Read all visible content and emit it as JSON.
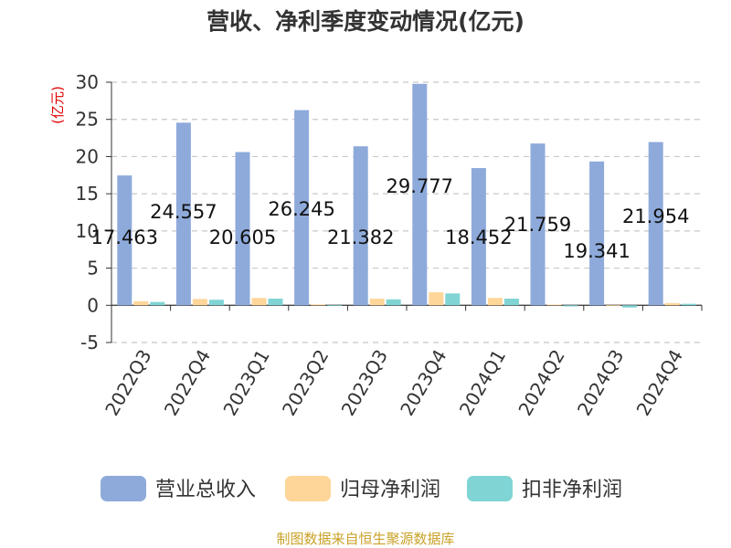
{
  "chart_data": {
    "type": "bar",
    "title": "营收、净利季度变动情况(亿元)",
    "ylabel": "(亿元)",
    "ylim": [
      -5,
      30
    ],
    "yticks": [
      -5,
      0,
      5,
      10,
      15,
      20,
      25,
      30
    ],
    "categories": [
      "2022Q3",
      "2022Q4",
      "2023Q1",
      "2023Q2",
      "2023Q3",
      "2023Q4",
      "2024Q1",
      "2024Q2",
      "2024Q3",
      "2024Q4"
    ],
    "series": [
      {
        "name": "营业总收入",
        "color": "#8eaadb",
        "values": [
          17.463,
          24.557,
          20.605,
          26.245,
          21.382,
          29.777,
          18.452,
          21.759,
          19.341,
          21.954
        ]
      },
      {
        "name": "归母净利润",
        "color": "#ffd699",
        "values": [
          0.55,
          0.85,
          1.0,
          0.12,
          0.9,
          1.75,
          1.0,
          0.1,
          -0.1,
          0.3
        ]
      },
      {
        "name": "扣非净利润",
        "color": "#80d4d4",
        "values": [
          0.45,
          0.75,
          0.9,
          -0.1,
          0.8,
          1.6,
          0.9,
          -0.15,
          -0.3,
          0.2
        ]
      }
    ],
    "data_labels": [
      "17.463",
      "24.557",
      "20.605",
      "26.245",
      "21.382",
      "29.777",
      "18.452",
      "21.759",
      "19.341",
      "21.954"
    ],
    "grid": true,
    "legend_position": "bottom",
    "source": "制图数据来自恒生聚源数据库"
  }
}
